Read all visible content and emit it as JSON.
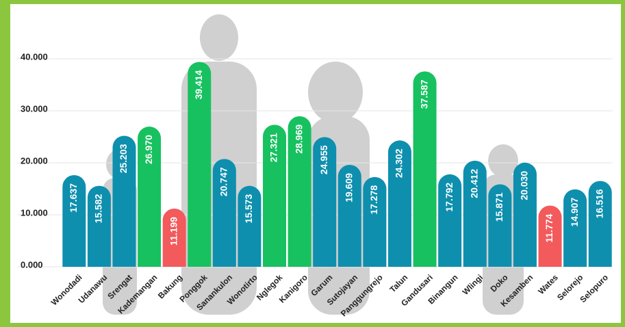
{
  "chart_data": {
    "type": "bar",
    "categories": [
      "Wonodadi",
      "Udanawu",
      "Srengat",
      "Kademangan",
      "Bakung",
      "Ponggok",
      "Sanankulon",
      "Wonotirto",
      "Nglegok",
      "Kanigoro",
      "Garum",
      "Sutojayan",
      "Panggungrejo",
      "Talun",
      "Gandusari",
      "Binangun",
      "Wlingi",
      "Doko",
      "Kesamben",
      "Wates",
      "Selorejo",
      "Selopuro"
    ],
    "values": [
      17637,
      15582,
      25203,
      26970,
      11199,
      39414,
      20747,
      15573,
      27321,
      28969,
      24955,
      19609,
      17278,
      24302,
      37587,
      17792,
      20412,
      15871,
      20030,
      11774,
      14907,
      16516
    ],
    "value_labels": [
      "17.637",
      "15.582",
      "25.203",
      "26.970",
      "11.199",
      "39.414",
      "20.747",
      "15.573",
      "27.321",
      "28.969",
      "24.955",
      "19.609",
      "17.278",
      "24.302",
      "37.587",
      "17.792",
      "20.412",
      "15.871",
      "20.030",
      "11.774",
      "14.907",
      "16.516"
    ],
    "colors": [
      "#0e8fae",
      "#0e8fae",
      "#0e8fae",
      "#17c160",
      "#f25a5c",
      "#17c160",
      "#0e8fae",
      "#0e8fae",
      "#17c160",
      "#17c160",
      "#0e8fae",
      "#0e8fae",
      "#0e8fae",
      "#0e8fae",
      "#17c160",
      "#0e8fae",
      "#0e8fae",
      "#0e8fae",
      "#0e8fae",
      "#f25a5c",
      "#0e8fae",
      "#0e8fae"
    ],
    "ylim": [
      0,
      40000
    ],
    "yticks": [
      {
        "value": 0,
        "label": "0.000"
      },
      {
        "value": 10000,
        "label": "10.000"
      },
      {
        "value": 20000,
        "label": "20.000"
      },
      {
        "value": 30000,
        "label": "30.000"
      },
      {
        "value": 40000,
        "label": "40.000"
      }
    ],
    "grid": true
  }
}
